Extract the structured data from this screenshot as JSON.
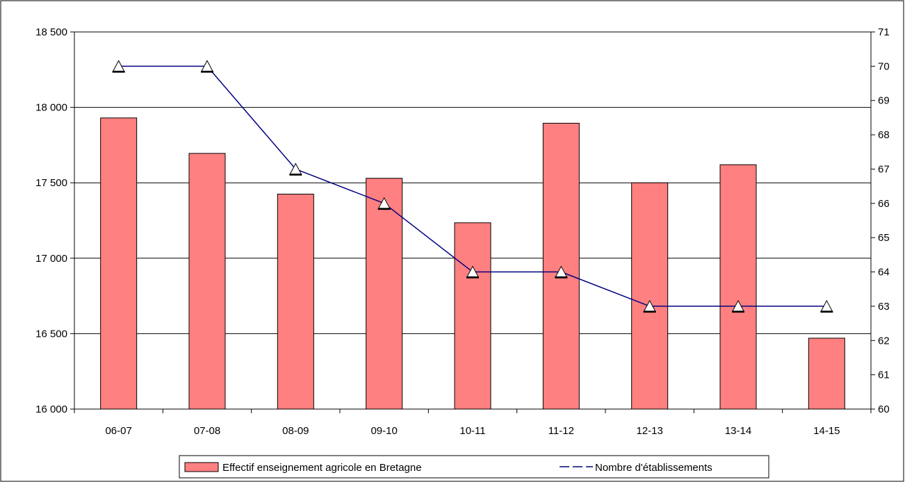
{
  "chart_data": {
    "type": "bar",
    "title": "",
    "xlabel": "",
    "ylabel": "",
    "categories": [
      "06-07",
      "07-08",
      "08-09",
      "09-10",
      "10-11",
      "11-12",
      "12-13",
      "13-14",
      "14-15"
    ],
    "series": [
      {
        "name": "Effectif enseignement agricole en Bretagne",
        "type": "bar",
        "axis": "left",
        "color": "#FF8080",
        "values": [
          17930,
          17695,
          17425,
          17530,
          17235,
          17895,
          17500,
          17620,
          16470
        ]
      },
      {
        "name": "Nombre d'établissements",
        "type": "line",
        "axis": "right",
        "color": "#000080",
        "marker": "triangle",
        "values": [
          70,
          70,
          67,
          66,
          64,
          64,
          63,
          63,
          63
        ]
      }
    ],
    "y_left": {
      "ylim": [
        16000,
        18500
      ],
      "ticks": [
        16000,
        16500,
        17000,
        17500,
        18000,
        18500
      ],
      "tick_labels": [
        "16 000",
        "16 500",
        "17 000",
        "17 500",
        "18 000",
        "18 500"
      ]
    },
    "y_right": {
      "ylim": [
        60,
        71
      ],
      "ticks": [
        60,
        61,
        62,
        63,
        64,
        65,
        66,
        67,
        68,
        69,
        70,
        71
      ],
      "tick_labels": [
        "60",
        "61",
        "62",
        "63",
        "64",
        "65",
        "66",
        "67",
        "68",
        "69",
        "70",
        "71"
      ]
    },
    "grid": true,
    "legend_position": "bottom"
  }
}
